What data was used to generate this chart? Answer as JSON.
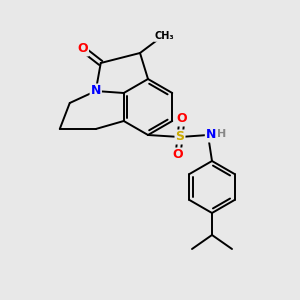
{
  "background_color": "#e8e8e8",
  "figsize": [
    3.0,
    3.0
  ],
  "dpi": 100,
  "bond_color": "#000000",
  "bond_width": 1.4,
  "atom_colors": {
    "O": "#ff0000",
    "N": "#0000ff",
    "S": "#ccaa00",
    "C": "#000000",
    "H": "#888888"
  },
  "font_size": 9,
  "font_size_small": 8
}
